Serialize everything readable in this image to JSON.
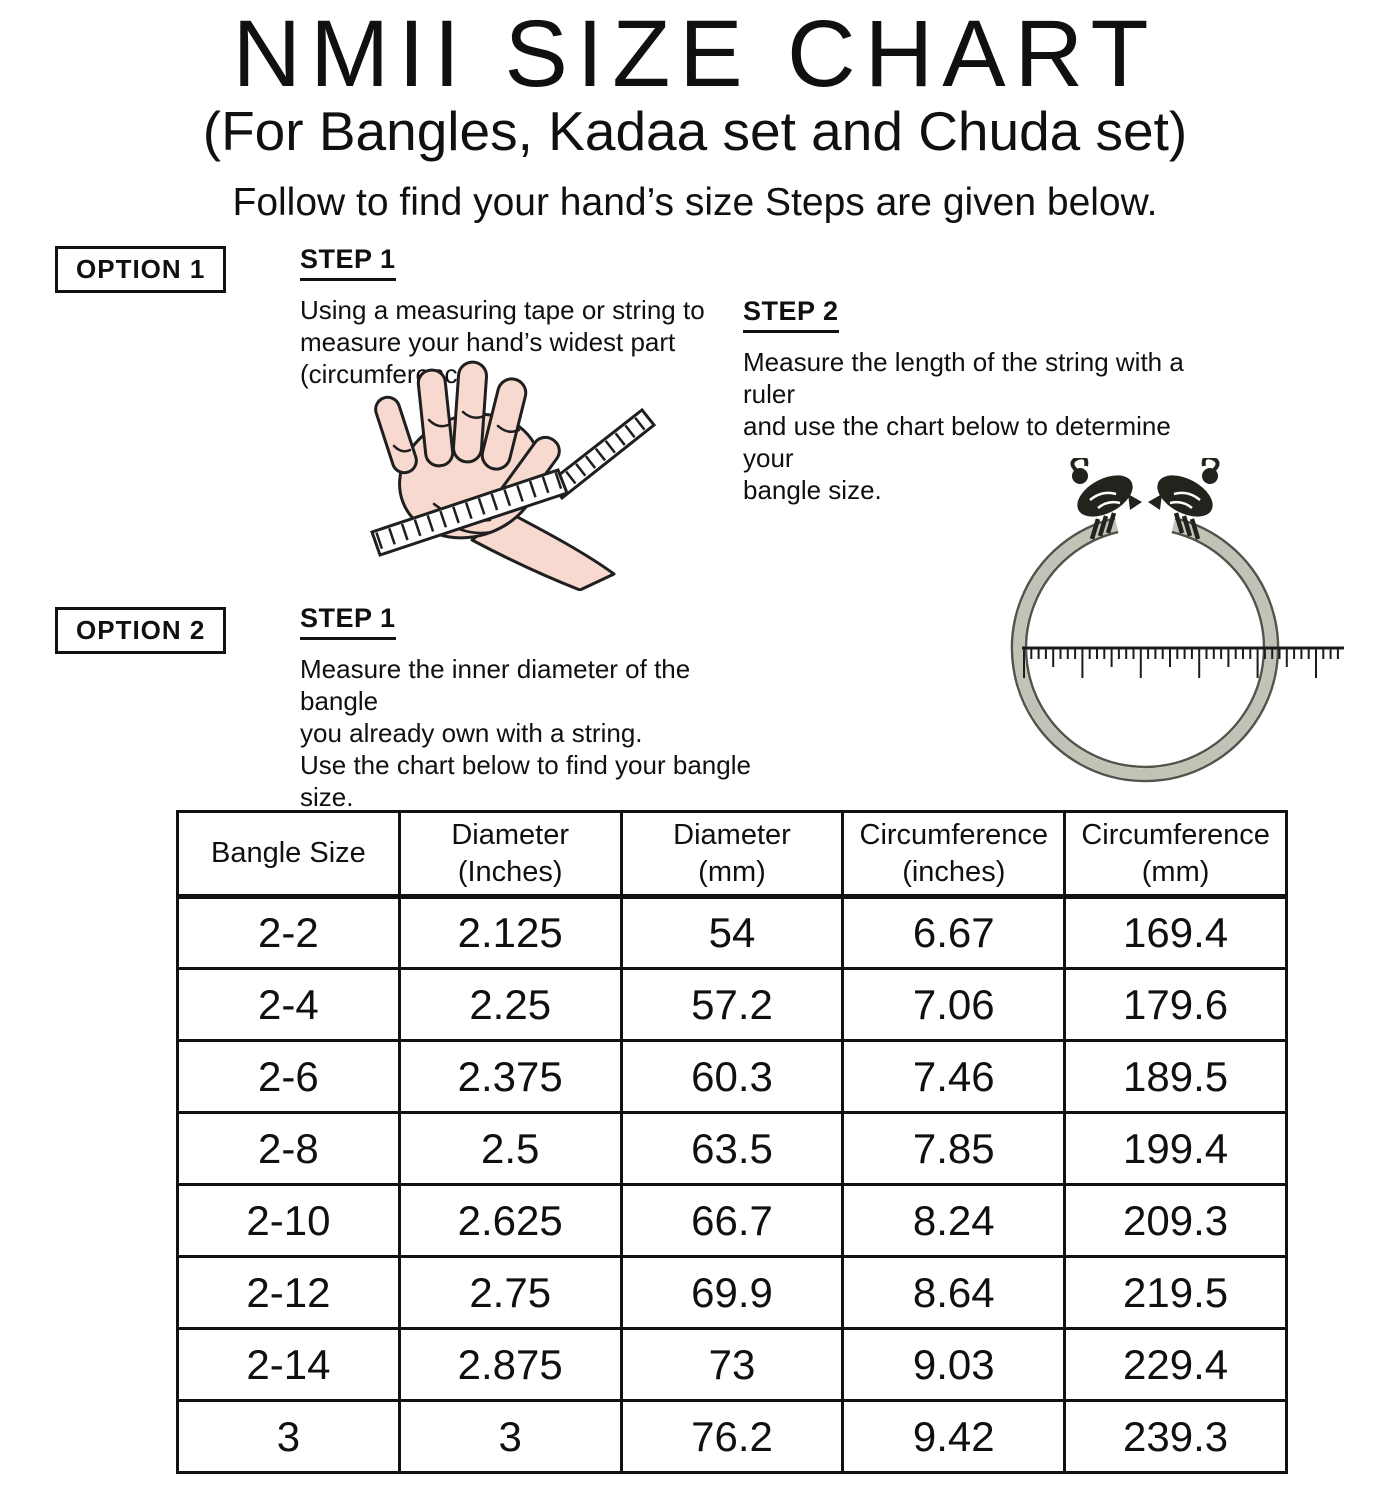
{
  "header": {
    "title": "NMII SIZE CHART",
    "subtitle": "(For Bangles, Kadaa set and Chuda set)",
    "tagline": "Follow to find your hand’s size Steps are given below."
  },
  "option1": {
    "label": "OPTION 1",
    "step1": {
      "heading": "STEP 1",
      "text": "Using a measuring tape or string to\nmeasure your hand’s widest part\n(circumference)"
    },
    "step2": {
      "heading": "STEP 2",
      "text": "Measure the length of the string with a ruler\nand use the chart below to determine your\nbangle size."
    }
  },
  "option2": {
    "label": "OPTION 2",
    "step1": {
      "heading": "STEP 1",
      "text": "Measure the inner diameter of the bangle\nyou already own with a string.\nUse the chart below to find your bangle\nsize."
    }
  },
  "illustrations": {
    "hand": "hand-with-measuring-tape",
    "bangle_ruler": "bangle-measured-on-ruler"
  },
  "chart_data": {
    "type": "table",
    "columns": [
      "Bangle Size",
      "Diameter\n(Inches)",
      "Diameter\n(mm)",
      "Circumference\n(inches)",
      "Circumference\n(mm)"
    ],
    "rows": [
      [
        "2-2",
        "2.125",
        "54",
        "6.67",
        "169.4"
      ],
      [
        "2-4",
        "2.25",
        "57.2",
        "7.06",
        "179.6"
      ],
      [
        "2-6",
        "2.375",
        "60.3",
        "7.46",
        "189.5"
      ],
      [
        "2-8",
        "2.5",
        "63.5",
        "7.85",
        "199.4"
      ],
      [
        "2-10",
        "2.625",
        "66.7",
        "8.24",
        "209.3"
      ],
      [
        "2-12",
        "2.75",
        "69.9",
        "8.64",
        "219.5"
      ],
      [
        "2-14",
        "2.875",
        "73",
        "9.03",
        "229.4"
      ],
      [
        "3",
        "3",
        "76.2",
        "9.42",
        "239.3"
      ]
    ]
  },
  "colors": {
    "ink": "#111111",
    "skin": "#f7d9d0",
    "metal": "#c2c2b6"
  }
}
